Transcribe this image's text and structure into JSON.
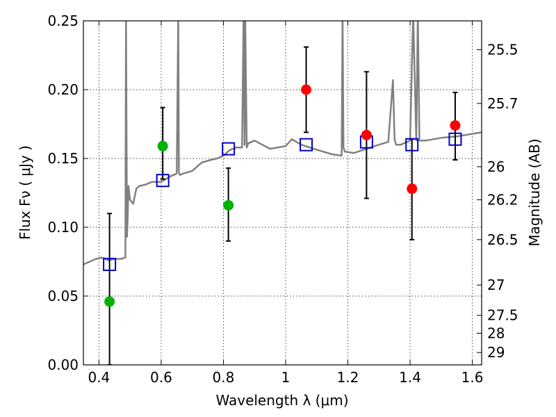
{
  "chart_data": {
    "type": "scatter",
    "xlabel": "Wavelength  λ (μm)",
    "ylabel": "Flux  Fν  ( μJy )",
    "y2label": "Magnitude (AB)",
    "xlim": [
      0.35,
      1.63
    ],
    "ylim": [
      0.0,
      0.25
    ],
    "grid": true,
    "x_ticks": [
      0.4,
      0.6,
      0.8,
      1.0,
      1.2,
      1.4,
      1.6
    ],
    "x_tick_labels": [
      "0.4",
      "0.6",
      "0.8",
      "1",
      "1.2",
      "1.4",
      "1.6"
    ],
    "y_ticks": [
      0.0,
      0.05,
      0.1,
      0.15,
      0.2,
      0.25
    ],
    "y_tick_labels": [
      "0.00",
      "0.05",
      "0.10",
      "0.15",
      "0.20",
      "0.25"
    ],
    "y2_ticks": [
      {
        "label": "25.5",
        "flux": 0.229
      },
      {
        "label": "25.7",
        "flux": 0.19
      },
      {
        "label": "26",
        "flux": 0.144
      },
      {
        "label": "26.2",
        "flux": 0.12
      },
      {
        "label": "26.5",
        "flux": 0.091
      },
      {
        "label": "27",
        "flux": 0.058
      },
      {
        "label": "27.5",
        "flux": 0.036
      },
      {
        "label": "28",
        "flux": 0.023
      },
      {
        "label": "29",
        "flux": 0.009
      }
    ],
    "colors": {
      "spectrum": "#808080",
      "model": "#0000cc",
      "green": "#00b300",
      "red": "#ff0000",
      "errorbar": "#000000"
    },
    "spectrum": {
      "x": [
        0.35,
        0.37,
        0.39,
        0.41,
        0.43,
        0.45,
        0.47,
        0.485,
        0.487,
        0.49,
        0.492,
        0.495,
        0.5,
        0.51,
        0.52,
        0.53,
        0.55,
        0.57,
        0.6,
        0.63,
        0.65,
        0.655,
        0.657,
        0.66,
        0.67,
        0.7,
        0.73,
        0.76,
        0.78,
        0.8,
        0.82,
        0.84,
        0.86,
        0.865,
        0.868,
        0.87,
        0.875,
        0.88,
        0.9,
        0.95,
        1.0,
        1.02,
        1.05,
        1.09,
        1.12,
        1.15,
        1.18,
        1.183,
        1.186,
        1.19,
        1.22,
        1.26,
        1.3,
        1.33,
        1.345,
        1.35,
        1.355,
        1.37,
        1.4,
        1.41,
        1.42,
        1.425,
        1.43,
        1.45,
        1.5,
        1.55,
        1.63
      ],
      "y": [
        0.073,
        0.075,
        0.077,
        0.078,
        0.076,
        0.077,
        0.077,
        0.078,
        0.255,
        0.093,
        0.105,
        0.13,
        0.12,
        0.117,
        0.128,
        0.13,
        0.131,
        0.133,
        0.133,
        0.137,
        0.139,
        0.255,
        0.14,
        0.138,
        0.139,
        0.141,
        0.147,
        0.149,
        0.15,
        0.152,
        0.156,
        0.158,
        0.158,
        0.255,
        0.16,
        0.255,
        0.158,
        0.161,
        0.163,
        0.157,
        0.159,
        0.164,
        0.16,
        0.157,
        0.155,
        0.153,
        0.152,
        0.255,
        0.158,
        0.155,
        0.154,
        0.157,
        0.16,
        0.162,
        0.207,
        0.164,
        0.16,
        0.16,
        0.163,
        0.255,
        0.163,
        0.255,
        0.163,
        0.163,
        0.165,
        0.166,
        0.169
      ]
    },
    "model_points": [
      {
        "x": 0.434,
        "y": 0.073
      },
      {
        "x": 0.605,
        "y": 0.134
      },
      {
        "x": 0.816,
        "y": 0.157
      },
      {
        "x": 1.066,
        "y": 0.16
      },
      {
        "x": 1.26,
        "y": 0.162
      },
      {
        "x": 1.406,
        "y": 0.16
      },
      {
        "x": 1.545,
        "y": 0.164
      }
    ],
    "observed_green": [
      {
        "x": 0.434,
        "y": 0.046,
        "yerr_low": 0.0,
        "yerr_high": 0.11
      },
      {
        "x": 0.605,
        "y": 0.159,
        "yerr_low": 0.135,
        "yerr_high": 0.187
      },
      {
        "x": 0.816,
        "y": 0.116,
        "yerr_low": 0.09,
        "yerr_high": 0.143
      }
    ],
    "observed_red": [
      {
        "x": 1.066,
        "y": 0.2,
        "yerr_low": 0.169,
        "yerr_high": 0.231
      },
      {
        "x": 1.26,
        "y": 0.167,
        "yerr_low": 0.121,
        "yerr_high": 0.213
      },
      {
        "x": 1.406,
        "y": 0.128,
        "yerr_low": 0.091,
        "yerr_high": 0.164
      },
      {
        "x": 1.545,
        "y": 0.174,
        "yerr_low": 0.149,
        "yerr_high": 0.198
      }
    ]
  }
}
